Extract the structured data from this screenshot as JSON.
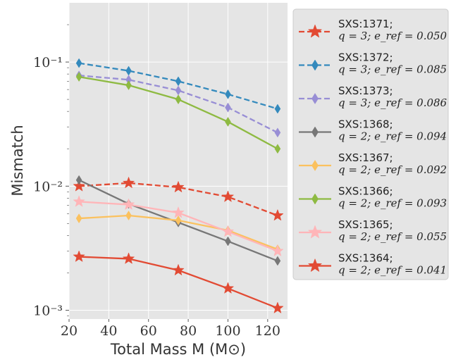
{
  "chart_data": {
    "type": "line",
    "xlabel": "Total Mass M (M⊙)",
    "ylabel": "Mismatch",
    "x_scale": "linear",
    "y_scale": "log",
    "xlim": [
      20,
      130
    ],
    "ylim": [
      0.00085,
      0.3
    ],
    "x_ticks": [
      20,
      40,
      60,
      80,
      100,
      120
    ],
    "x_tick_labels": [
      "20",
      "40",
      "60",
      "80",
      "100",
      "120"
    ],
    "y_ticks": [
      0.001,
      0.01,
      0.1
    ],
    "y_tick_labels": [
      "10⁻³",
      "10⁻²",
      "10⁻¹"
    ],
    "grid": true,
    "legend_position": "outside-right",
    "x": [
      25,
      50,
      75,
      100,
      125
    ],
    "series": [
      {
        "name": "SXS:1371;",
        "params": "q = 3; e_ref = 0.050",
        "color": "#E24A33",
        "dash": true,
        "marker": "star",
        "values": [
          0.01,
          0.0106,
          0.0098,
          0.0082,
          0.0058
        ]
      },
      {
        "name": "SXS:1372;",
        "params": "q = 3; e_ref = 0.085",
        "color": "#348ABD",
        "dash": true,
        "marker": "diamond",
        "values": [
          0.098,
          0.085,
          0.07,
          0.055,
          0.042
        ]
      },
      {
        "name": "SXS:1373;",
        "params": "q = 3; e_ref = 0.086",
        "color": "#988ED5",
        "dash": true,
        "marker": "diamond",
        "values": [
          0.078,
          0.072,
          0.059,
          0.043,
          0.027
        ]
      },
      {
        "name": "SXS:1368;",
        "params": "q = 2; e_ref = 0.094",
        "color": "#777777",
        "dash": false,
        "marker": "diamond",
        "values": [
          0.0112,
          0.0072,
          0.0051,
          0.0036,
          0.0025
        ]
      },
      {
        "name": "SXS:1367;",
        "params": "q = 2; e_ref = 0.092",
        "color": "#FBC15E",
        "dash": false,
        "marker": "diamond",
        "values": [
          0.0055,
          0.0058,
          0.0053,
          0.0044,
          0.0031
        ]
      },
      {
        "name": "SXS:1366;",
        "params": "q = 2; e_ref = 0.093",
        "color": "#8EBA42",
        "dash": false,
        "marker": "diamond",
        "values": [
          0.076,
          0.065,
          0.05,
          0.033,
          0.02
        ]
      },
      {
        "name": "SXS:1365;",
        "params": "q = 2; e_ref = 0.055",
        "color": "#FFB5B8",
        "dash": false,
        "marker": "star",
        "values": [
          0.0075,
          0.0071,
          0.0061,
          0.0043,
          0.003
        ]
      },
      {
        "name": "SXS:1364;",
        "params": "q = 2; e_ref = 0.041",
        "color": "#E24A33",
        "dash": false,
        "marker": "star",
        "values": [
          0.0027,
          0.0026,
          0.0021,
          0.0015,
          0.00104
        ]
      }
    ]
  }
}
